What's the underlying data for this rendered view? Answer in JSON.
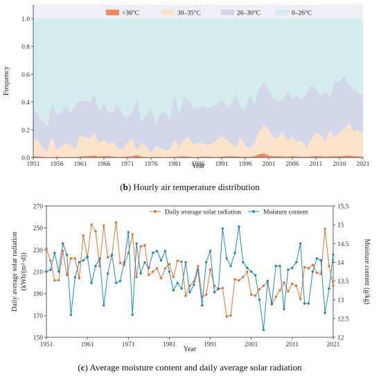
{
  "chart_data": [
    {
      "type": "area",
      "stacked": true,
      "caption_letter": "b",
      "caption_text": "Hourly air temperature distribution",
      "ylabel": "Frequency",
      "xlabel": "Year",
      "xlim": [
        1951,
        2021
      ],
      "ylim": [
        0,
        1.0
      ],
      "xticks": [
        1951,
        1956,
        1961,
        1966,
        1971,
        1976,
        1981,
        1986,
        1991,
        1996,
        2001,
        2006,
        2011,
        2016,
        2021
      ],
      "yticks": [
        "0.0",
        "0.2",
        "0.4",
        "0.6",
        "0.8",
        "1.0"
      ],
      "legend_position": "top",
      "series": [
        {
          "name": ">36°C",
          "color": "#F28A60",
          "key": "s36"
        },
        {
          "name": "30–35°C",
          "color": "#FCE3CC",
          "key": "s30"
        },
        {
          "name": "26–30°C",
          "color": "#D2D8EA",
          "key": "s26"
        },
        {
          "name": "0–26°C",
          "color": "#D6EDF0",
          "key": "s0"
        }
      ],
      "years": [
        1951,
        1952,
        1953,
        1954,
        1955,
        1956,
        1957,
        1958,
        1959,
        1960,
        1961,
        1962,
        1963,
        1964,
        1965,
        1966,
        1967,
        1968,
        1969,
        1970,
        1971,
        1972,
        1973,
        1974,
        1975,
        1976,
        1977,
        1978,
        1979,
        1980,
        1981,
        1982,
        1983,
        1984,
        1985,
        1986,
        1987,
        1988,
        1989,
        1990,
        1991,
        1992,
        1993,
        1994,
        1995,
        1996,
        1997,
        1998,
        1999,
        2000,
        2001,
        2002,
        2003,
        2004,
        2005,
        2006,
        2007,
        2008,
        2009,
        2010,
        2011,
        2012,
        2013,
        2014,
        2015,
        2016,
        2017,
        2018,
        2019,
        2020,
        2021
      ],
      "cum_36": [
        0.01,
        0.008,
        0.005,
        0.003,
        0.002,
        0.006,
        0.004,
        0.003,
        0.005,
        0.004,
        0.008,
        0.01,
        0.012,
        0.015,
        0.008,
        0.01,
        0.012,
        0.006,
        0.004,
        0.005,
        0.006,
        0.01,
        0.018,
        0.006,
        0.004,
        0.002,
        0.005,
        0.004,
        0.003,
        0.005,
        0.004,
        0.008,
        0.01,
        0.006,
        0.004,
        0.005,
        0.006,
        0.008,
        0.005,
        0.004,
        0.006,
        0.008,
        0.01,
        0.008,
        0.006,
        0.005,
        0.006,
        0.01,
        0.025,
        0.03,
        0.015,
        0.008,
        0.01,
        0.008,
        0.006,
        0.01,
        0.008,
        0.006,
        0.005,
        0.008,
        0.012,
        0.01,
        0.006,
        0.008,
        0.01,
        0.008,
        0.012,
        0.015,
        0.01,
        0.008,
        0.006
      ],
      "cum_30": [
        0.14,
        0.12,
        0.07,
        0.04,
        0.15,
        0.05,
        0.08,
        0.1,
        0.09,
        0.06,
        0.16,
        0.15,
        0.14,
        0.18,
        0.1,
        0.13,
        0.1,
        0.11,
        0.07,
        0.06,
        0.11,
        0.14,
        0.05,
        0.11,
        0.08,
        0.03,
        0.08,
        0.07,
        0.05,
        0.06,
        0.13,
        0.07,
        0.13,
        0.15,
        0.09,
        0.11,
        0.1,
        0.09,
        0.1,
        0.13,
        0.15,
        0.13,
        0.1,
        0.07,
        0.15,
        0.08,
        0.07,
        0.1,
        0.2,
        0.23,
        0.2,
        0.14,
        0.15,
        0.19,
        0.12,
        0.15,
        0.11,
        0.12,
        0.07,
        0.13,
        0.18,
        0.16,
        0.12,
        0.2,
        0.14,
        0.18,
        0.2,
        0.25,
        0.19,
        0.2,
        0.17
      ],
      "cum_26": [
        0.35,
        0.32,
        0.26,
        0.23,
        0.4,
        0.3,
        0.33,
        0.38,
        0.32,
        0.38,
        0.41,
        0.41,
        0.4,
        0.45,
        0.33,
        0.38,
        0.32,
        0.33,
        0.39,
        0.31,
        0.29,
        0.33,
        0.42,
        0.26,
        0.31,
        0.35,
        0.24,
        0.32,
        0.33,
        0.27,
        0.44,
        0.31,
        0.44,
        0.42,
        0.35,
        0.35,
        0.37,
        0.36,
        0.37,
        0.38,
        0.42,
        0.36,
        0.39,
        0.46,
        0.35,
        0.35,
        0.46,
        0.39,
        0.5,
        0.54,
        0.49,
        0.43,
        0.41,
        0.42,
        0.47,
        0.42,
        0.45,
        0.41,
        0.46,
        0.52,
        0.5,
        0.44,
        0.48,
        0.43,
        0.56,
        0.54,
        0.59,
        0.52,
        0.49,
        0.47,
        0.45
      ]
    },
    {
      "type": "line",
      "caption_letter": "c",
      "caption_text": "Average moisture content and daily average solar radiation",
      "xlabel": "Year",
      "ylabel_left_line1": "Daily average solar radiation",
      "ylabel_left_line2": "(kWh/(m²·d))",
      "ylabel_right": "Moisture content (g/kg)",
      "xlim": [
        1951,
        2021
      ],
      "ylim_left": [
        150,
        270
      ],
      "ylim_right": [
        12,
        15.5
      ],
      "xticks": [
        1951,
        1961,
        1971,
        1981,
        1991,
        2001,
        2011,
        2021
      ],
      "yticks_left": [
        150,
        170,
        190,
        210,
        230,
        250,
        270
      ],
      "yticks_right": [
        "12",
        "12.5",
        "13",
        "13.5",
        "14",
        "14.5",
        "15",
        "15.5"
      ],
      "legend_position": "top",
      "series": [
        {
          "name": "Daily average solar radiation",
          "color": "#D9733A",
          "axis": "left",
          "values": [
            231,
            220,
            202,
            202,
            229,
            207,
            222,
            222,
            204,
            243,
            223,
            253,
            247,
            215,
            252,
            223,
            225,
            255,
            218,
            216,
            227,
            244,
            205,
            233,
            234,
            207,
            210,
            213,
            204,
            213,
            217,
            205,
            220,
            219,
            188,
            197,
            201,
            215,
            187,
            189,
            212,
            197,
            194,
            195,
            169,
            170,
            203,
            202,
            205,
            210,
            189,
            188,
            194,
            197,
            201,
            180,
            187,
            193,
            200,
            192,
            199,
            197,
            185,
            214,
            213,
            216,
            209,
            208,
            249,
            215,
            197
          ]
        },
        {
          "name": "Moisture content",
          "color": "#2287B5",
          "axis": "right",
          "values": [
            13.75,
            13.8,
            14.25,
            13.75,
            14.5,
            14.2,
            12.6,
            13.6,
            14.0,
            14.05,
            14.15,
            13.45,
            13.9,
            14.1,
            12.85,
            13.7,
            14.2,
            13.45,
            13.5,
            14.0,
            14.8,
            12.6,
            14.5,
            13.7,
            14.0,
            13.85,
            14.25,
            14.3,
            14.05,
            14.3,
            13.75,
            13.25,
            13.45,
            13.3,
            14.0,
            13.2,
            13.4,
            13.8,
            12.85,
            14.0,
            14.3,
            13.2,
            13.3,
            14.9,
            14.1,
            13.9,
            14.25,
            14.95,
            14.0,
            13.85,
            13.75,
            13.65,
            13.0,
            12.2,
            13.5,
            12.9,
            13.9,
            13.9,
            12.75,
            13.8,
            13.85,
            14.0,
            14.5,
            12.9,
            12.9,
            13.75,
            14.1,
            14.05,
            12.65,
            13.3,
            14.2
          ]
        }
      ]
    }
  ],
  "chart_b": {
    "caption_letter": "b",
    "caption_text": "Hourly air temperature distribution",
    "ylabel": "Frequency",
    "xlabel": "Year",
    "legend": [
      ">36°C",
      "30–35°C",
      "26–30°C",
      "0–26°C"
    ]
  },
  "chart_c": {
    "caption_letter": "c",
    "caption_text": "Average moisture content and daily average solar radiation",
    "xlabel": "Year",
    "ylabel_left_line1": "Daily average solar radiation",
    "ylabel_left_line2": "(kWh/(m²·d))",
    "ylabel_right": "Moisture content (g/kg)",
    "legend": [
      "Daily average solar radiation",
      "Moisture content"
    ]
  }
}
